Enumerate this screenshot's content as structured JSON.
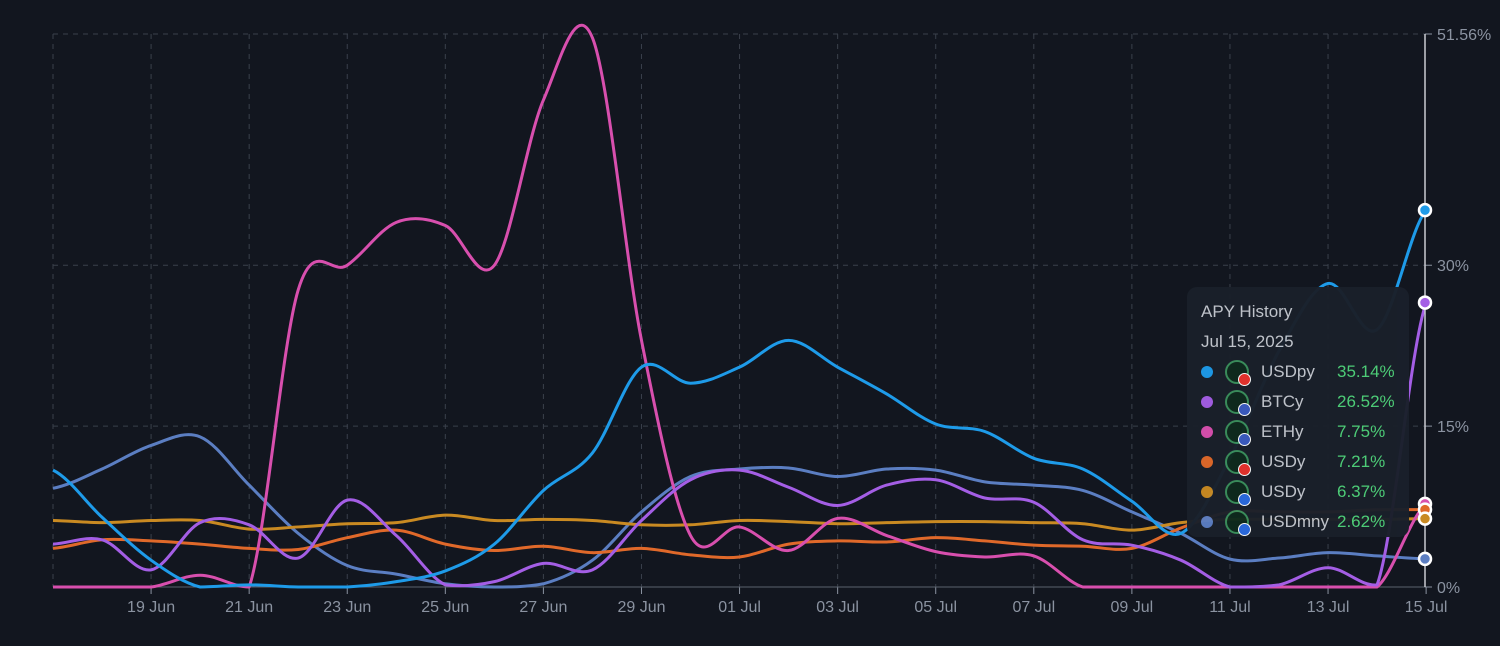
{
  "chart_data": {
    "type": "line",
    "title": "APY History",
    "x": [
      "17 Jun",
      "18 Jun",
      "19 Jun",
      "20 Jun",
      "21 Jun",
      "22 Jun",
      "23 Jun",
      "24 Jun",
      "25 Jun",
      "26 Jun",
      "27 Jun",
      "28 Jun",
      "29 Jun",
      "30 Jun",
      "01 Jul",
      "02 Jul",
      "03 Jul",
      "04 Jul",
      "05 Jul",
      "06 Jul",
      "07 Jul",
      "08 Jul",
      "09 Jul",
      "10 Jul",
      "11 Jul",
      "12 Jul",
      "13 Jul",
      "14 Jul",
      "15 Jul"
    ],
    "xticks": [
      "19 Jun",
      "21 Jun",
      "23 Jun",
      "25 Jun",
      "27 Jun",
      "29 Jun",
      "01 Jul",
      "03 Jul",
      "05 Jul",
      "07 Jul",
      "09 Jul",
      "11 Jul",
      "13 Jul",
      "15 Jul"
    ],
    "yticks": [
      "0%",
      "15%",
      "30%",
      "51.56%"
    ],
    "ytick_values": [
      0,
      15,
      30,
      51.56
    ],
    "ylim": [
      0,
      51.56
    ],
    "grid": true,
    "series": [
      {
        "name": "USDpy",
        "color": "#1e9be9",
        "values": [
          10.9,
          6.5,
          2.5,
          0,
          0.2,
          0,
          0,
          0.5,
          1.5,
          4,
          9,
          12.5,
          20.5,
          19,
          20.5,
          23,
          20.5,
          18,
          15.2,
          14.5,
          12,
          11,
          8,
          5,
          12,
          22,
          28.3,
          24,
          35.14
        ]
      },
      {
        "name": "BTCy",
        "color": "#a45ee5",
        "values": [
          4,
          4.4,
          1.6,
          6,
          5.8,
          2.7,
          8.1,
          4.8,
          0.2,
          0.5,
          2.2,
          1.6,
          6.2,
          10,
          10.9,
          9.3,
          7.6,
          9.5,
          10,
          8.3,
          7.9,
          4.4,
          3.9,
          2.5,
          0,
          0.2,
          1.8,
          0.2,
          26.52
        ]
      },
      {
        "name": "ETHy",
        "color": "#d84fae",
        "values": [
          0,
          0,
          0,
          1.1,
          0,
          27.7,
          30,
          34,
          33.7,
          30,
          45.4,
          51.2,
          23,
          4.8,
          5.6,
          3.4,
          6.4,
          4.8,
          3.3,
          2.8,
          2.9,
          0,
          0,
          0,
          0,
          0,
          0,
          0,
          7.75
        ]
      },
      {
        "name": "USDy",
        "color": "#e0692a",
        "values": [
          3.6,
          4.4,
          4.3,
          4,
          3.6,
          3.5,
          4.6,
          5.3,
          4,
          3.4,
          3.8,
          3.2,
          3.6,
          3,
          2.8,
          4,
          4.3,
          4.2,
          4.6,
          4.3,
          3.9,
          3.8,
          3.6,
          5.5,
          7,
          7,
          7,
          7.2,
          7.21
        ]
      },
      {
        "name": "USDy",
        "color": "#c98a22",
        "values": [
          6.2,
          6,
          6.2,
          6.2,
          5.4,
          5.6,
          5.9,
          6,
          6.7,
          6.2,
          6.3,
          6.2,
          5.8,
          5.8,
          6.2,
          6.1,
          5.9,
          6,
          6.1,
          6.1,
          6,
          5.9,
          5.3,
          6,
          6.3,
          6.3,
          6.3,
          6.3,
          6.37
        ]
      },
      {
        "name": "USDmny",
        "color": "#5b7ec2",
        "values": [
          9.2,
          11,
          13.2,
          14,
          9.5,
          5,
          2,
          1.2,
          0.3,
          0,
          0.3,
          2.5,
          7,
          10.3,
          11,
          11.1,
          10.3,
          11,
          10.9,
          9.8,
          9.5,
          9,
          7,
          5,
          2.6,
          2.7,
          3.2,
          2.9,
          2.62
        ]
      }
    ]
  },
  "tooltip": {
    "title": "APY History",
    "date": "Jul 15, 2025",
    "rows": [
      {
        "name": "USDpy",
        "value": "35.14%",
        "color": "#1e9be9",
        "badge": "#e5322d"
      },
      {
        "name": "BTCy",
        "value": "26.52%",
        "color": "#a45ee5",
        "badge": "#3b5bbf"
      },
      {
        "name": "ETHy",
        "value": "7.75%",
        "color": "#d84fae",
        "badge": "#3b5bbf"
      },
      {
        "name": "USDy",
        "value": "7.21%",
        "color": "#e0692a",
        "badge": "#e5322d"
      },
      {
        "name": "USDy",
        "value": "6.37%",
        "color": "#c98a22",
        "badge": "#2a6ae0"
      },
      {
        "name": "USDmny",
        "value": "2.62%",
        "color": "#5b7ec2",
        "badge": "#2a6ae0"
      }
    ]
  }
}
